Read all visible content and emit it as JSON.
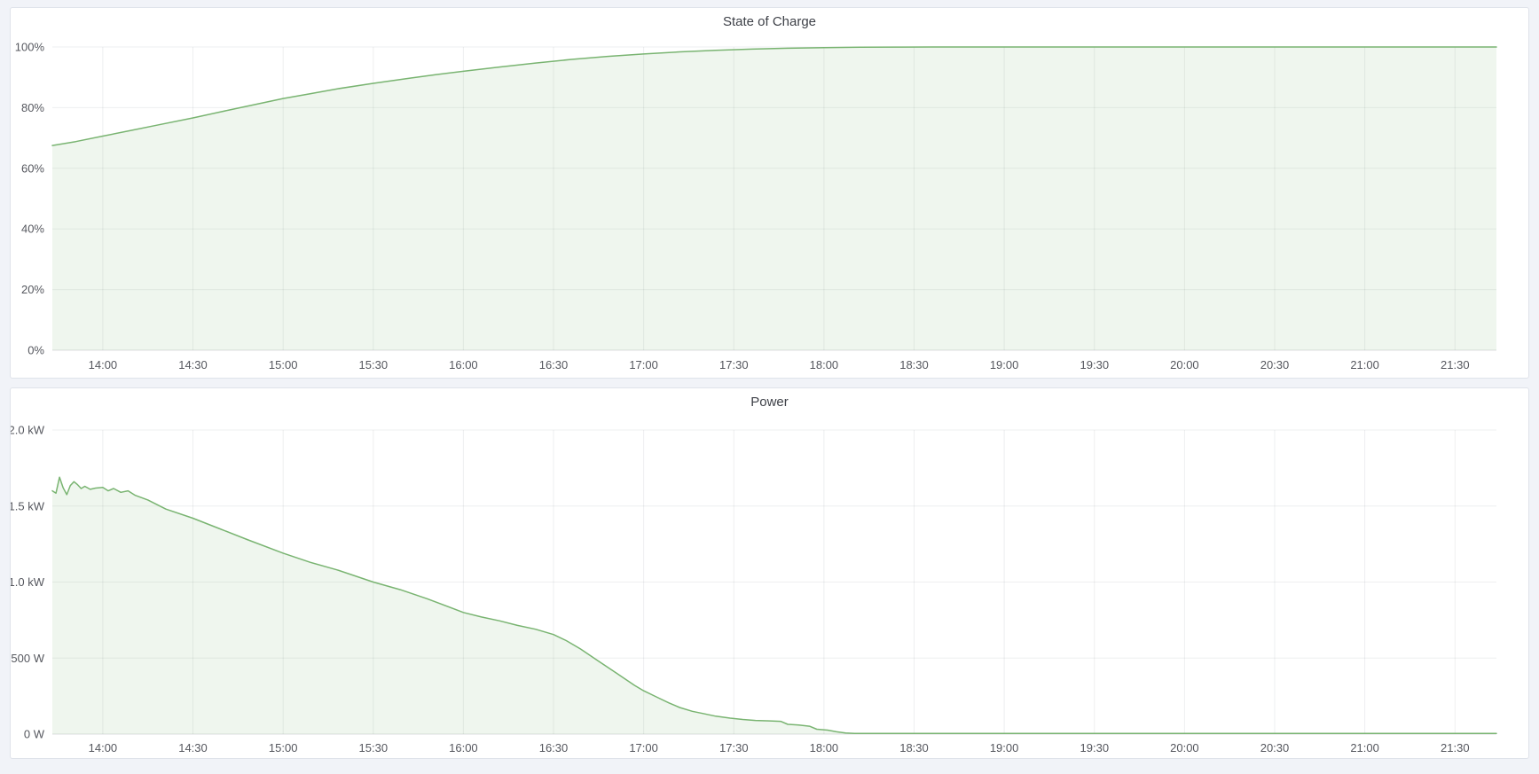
{
  "chart_data": [
    {
      "type": "area",
      "name": "state-of-charge",
      "title": "State of Charge",
      "ylabel": "",
      "xlabel": "",
      "grid": true,
      "legend": "none",
      "line_color": "#79b471",
      "fill_color": "rgba(121,180,113,0.12)",
      "x_range": [
        13.72,
        21.73
      ],
      "y_range": [
        0,
        100
      ],
      "y_ticks": [
        {
          "v": 0,
          "label": "0%"
        },
        {
          "v": 20,
          "label": "20%"
        },
        {
          "v": 40,
          "label": "40%"
        },
        {
          "v": 60,
          "label": "60%"
        },
        {
          "v": 80,
          "label": "80%"
        },
        {
          "v": 100,
          "label": "100%"
        }
      ],
      "x_ticks": [
        {
          "v": 14.0,
          "label": "14:00"
        },
        {
          "v": 14.5,
          "label": "14:30"
        },
        {
          "v": 15.0,
          "label": "15:00"
        },
        {
          "v": 15.5,
          "label": "15:30"
        },
        {
          "v": 16.0,
          "label": "16:00"
        },
        {
          "v": 16.5,
          "label": "16:30"
        },
        {
          "v": 17.0,
          "label": "17:00"
        },
        {
          "v": 17.5,
          "label": "17:30"
        },
        {
          "v": 18.0,
          "label": "18:00"
        },
        {
          "v": 18.5,
          "label": "18:30"
        },
        {
          "v": 19.0,
          "label": "19:00"
        },
        {
          "v": 19.5,
          "label": "19:30"
        },
        {
          "v": 20.0,
          "label": "20:00"
        },
        {
          "v": 20.5,
          "label": "20:30"
        },
        {
          "v": 21.0,
          "label": "21:00"
        },
        {
          "v": 21.5,
          "label": "21:30"
        }
      ],
      "points": [
        [
          13.72,
          67.5
        ],
        [
          13.85,
          68.8
        ],
        [
          14.0,
          70.6
        ],
        [
          14.15,
          72.4
        ],
        [
          14.3,
          74.2
        ],
        [
          14.5,
          76.6
        ],
        [
          14.7,
          79.2
        ],
        [
          14.85,
          81.1
        ],
        [
          15.0,
          83.0
        ],
        [
          15.15,
          84.6
        ],
        [
          15.3,
          86.2
        ],
        [
          15.5,
          88.0
        ],
        [
          15.7,
          89.7
        ],
        [
          15.85,
          90.9
        ],
        [
          16.0,
          92.0
        ],
        [
          16.2,
          93.4
        ],
        [
          16.4,
          94.7
        ],
        [
          16.6,
          95.9
        ],
        [
          16.8,
          96.9
        ],
        [
          17.0,
          97.7
        ],
        [
          17.2,
          98.4
        ],
        [
          17.4,
          98.9
        ],
        [
          17.6,
          99.3
        ],
        [
          17.8,
          99.6
        ],
        [
          18.0,
          99.8
        ],
        [
          18.2,
          99.9
        ],
        [
          18.4,
          99.97
        ],
        [
          18.6,
          100
        ],
        [
          19.0,
          100
        ],
        [
          19.5,
          100
        ],
        [
          20.0,
          100
        ],
        [
          20.5,
          100
        ],
        [
          21.0,
          100
        ],
        [
          21.4,
          100
        ],
        [
          21.73,
          100
        ]
      ]
    },
    {
      "type": "area",
      "name": "power",
      "title": "Power",
      "ylabel": "",
      "xlabel": "",
      "grid": true,
      "legend": "none",
      "line_color": "#79b471",
      "fill_color": "rgba(121,180,113,0.12)",
      "x_range": [
        13.72,
        21.73
      ],
      "y_range": [
        0,
        2000
      ],
      "y_ticks": [
        {
          "v": 0,
          "label": "0 W"
        },
        {
          "v": 500,
          "label": "500 W"
        },
        {
          "v": 1000,
          "label": "1.0 kW"
        },
        {
          "v": 1500,
          "label": "1.5 kW"
        },
        {
          "v": 2000,
          "label": "2.0 kW"
        }
      ],
      "x_ticks": [
        {
          "v": 14.0,
          "label": "14:00"
        },
        {
          "v": 14.5,
          "label": "14:30"
        },
        {
          "v": 15.0,
          "label": "15:00"
        },
        {
          "v": 15.5,
          "label": "15:30"
        },
        {
          "v": 16.0,
          "label": "16:00"
        },
        {
          "v": 16.5,
          "label": "16:30"
        },
        {
          "v": 17.0,
          "label": "17:00"
        },
        {
          "v": 17.5,
          "label": "17:30"
        },
        {
          "v": 18.0,
          "label": "18:00"
        },
        {
          "v": 18.5,
          "label": "18:30"
        },
        {
          "v": 19.0,
          "label": "19:00"
        },
        {
          "v": 19.5,
          "label": "19:30"
        },
        {
          "v": 20.0,
          "label": "20:00"
        },
        {
          "v": 20.5,
          "label": "20:30"
        },
        {
          "v": 21.0,
          "label": "21:00"
        },
        {
          "v": 21.5,
          "label": "21:30"
        }
      ],
      "points": [
        [
          13.72,
          1600
        ],
        [
          13.74,
          1585
        ],
        [
          13.76,
          1690
        ],
        [
          13.78,
          1620
        ],
        [
          13.8,
          1575
        ],
        [
          13.82,
          1635
        ],
        [
          13.84,
          1660
        ],
        [
          13.86,
          1640
        ],
        [
          13.88,
          1615
        ],
        [
          13.9,
          1630
        ],
        [
          13.93,
          1610
        ],
        [
          13.96,
          1618
        ],
        [
          14.0,
          1622
        ],
        [
          14.03,
          1600
        ],
        [
          14.06,
          1615
        ],
        [
          14.1,
          1590
        ],
        [
          14.14,
          1600
        ],
        [
          14.18,
          1570
        ],
        [
          14.25,
          1540
        ],
        [
          14.35,
          1480
        ],
        [
          14.5,
          1420
        ],
        [
          14.65,
          1350
        ],
        [
          14.8,
          1280
        ],
        [
          15.0,
          1190
        ],
        [
          15.15,
          1130
        ],
        [
          15.3,
          1080
        ],
        [
          15.5,
          1000
        ],
        [
          15.65,
          950
        ],
        [
          15.8,
          890
        ],
        [
          16.0,
          800
        ],
        [
          16.1,
          770
        ],
        [
          16.2,
          745
        ],
        [
          16.3,
          715
        ],
        [
          16.4,
          690
        ],
        [
          16.5,
          655
        ],
        [
          16.57,
          615
        ],
        [
          16.65,
          560
        ],
        [
          16.75,
          480
        ],
        [
          16.85,
          400
        ],
        [
          16.95,
          320
        ],
        [
          17.0,
          285
        ],
        [
          17.07,
          245
        ],
        [
          17.14,
          205
        ],
        [
          17.2,
          175
        ],
        [
          17.27,
          150
        ],
        [
          17.33,
          135
        ],
        [
          17.4,
          118
        ],
        [
          17.48,
          105
        ],
        [
          17.55,
          96
        ],
        [
          17.62,
          90
        ],
        [
          17.7,
          87
        ],
        [
          17.76,
          84
        ],
        [
          17.8,
          64
        ],
        [
          17.86,
          60
        ],
        [
          17.92,
          52
        ],
        [
          17.96,
          32
        ],
        [
          18.02,
          26
        ],
        [
          18.07,
          15
        ],
        [
          18.12,
          7
        ],
        [
          18.17,
          4
        ],
        [
          18.4,
          4
        ],
        [
          19.0,
          4
        ],
        [
          19.5,
          4
        ],
        [
          20.0,
          4
        ],
        [
          20.5,
          4
        ],
        [
          21.0,
          4
        ],
        [
          21.4,
          4
        ],
        [
          21.73,
          4
        ]
      ]
    }
  ]
}
